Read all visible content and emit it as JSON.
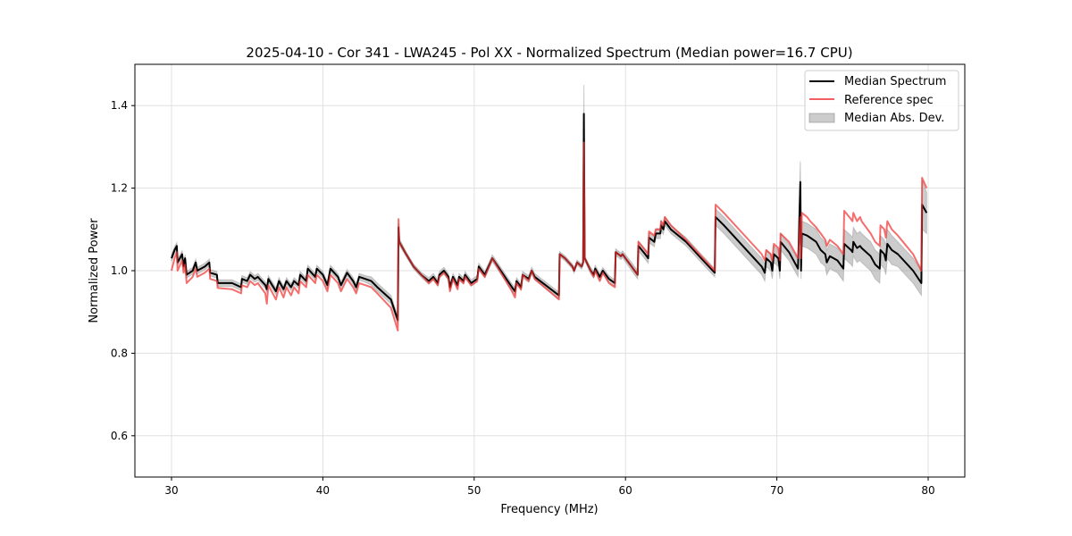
{
  "chart_data": {
    "type": "line",
    "title": "2025-04-10 - Cor 341 - LWA245 - Pol XX - Normalized Spectrum (Median power=16.7 CPU)",
    "xlabel": "Frequency (MHz)",
    "ylabel": "Normalized Power",
    "xlim": [
      27.58,
      82.42
    ],
    "ylim": [
      0.5,
      1.5
    ],
    "xticks": [
      30,
      40,
      50,
      60,
      70,
      80
    ],
    "xtick_labels": [
      "30",
      "40",
      "50",
      "60",
      "70",
      "80"
    ],
    "yticks": [
      0.6,
      0.8,
      1.0,
      1.2,
      1.4
    ],
    "ytick_labels": [
      "0.6",
      "0.8",
      "1.0",
      "1.2",
      "1.4"
    ],
    "grid": true,
    "legend_position": "top-right",
    "legend": [
      "Median Spectrum",
      "Reference spec",
      "Median Abs. Dev."
    ],
    "colors": {
      "median": "#000000",
      "reference": "#f05050",
      "mad": "#999999"
    },
    "point_columns": [
      "frequency_mhz",
      "median",
      "reference",
      "median_abs_dev"
    ],
    "points": [
      [
        30.0,
        1.03,
        1.0,
        0.008
      ],
      [
        30.2,
        1.05,
        1.03,
        0.008
      ],
      [
        30.35,
        1.06,
        1.045,
        0.008
      ],
      [
        30.4,
        1.02,
        1.0,
        0.008
      ],
      [
        30.7,
        1.04,
        1.025,
        0.008
      ],
      [
        30.8,
        1.01,
        0.995,
        0.008
      ],
      [
        30.9,
        1.03,
        1.015,
        0.008
      ],
      [
        31.0,
        0.99,
        0.97,
        0.008
      ],
      [
        31.4,
        1.0,
        0.985,
        0.008
      ],
      [
        31.6,
        1.02,
        1.005,
        0.008
      ],
      [
        31.7,
        1.0,
        0.985,
        0.008
      ],
      [
        32.2,
        1.01,
        0.995,
        0.008
      ],
      [
        32.5,
        1.02,
        1.005,
        0.008
      ],
      [
        32.55,
        0.995,
        0.98,
        0.008
      ],
      [
        33.0,
        0.99,
        0.975,
        0.008
      ],
      [
        33.05,
        0.97,
        0.958,
        0.008
      ],
      [
        34.0,
        0.97,
        0.955,
        0.008
      ],
      [
        34.6,
        0.96,
        0.945,
        0.008
      ],
      [
        34.65,
        0.98,
        0.965,
        0.008
      ],
      [
        35.0,
        0.975,
        0.96,
        0.008
      ],
      [
        35.2,
        0.99,
        0.975,
        0.008
      ],
      [
        35.5,
        0.98,
        0.965,
        0.008
      ],
      [
        35.7,
        0.985,
        0.97,
        0.008
      ],
      [
        36.2,
        0.965,
        0.945,
        0.008
      ],
      [
        36.3,
        0.955,
        0.92,
        0.008
      ],
      [
        36.4,
        0.98,
        0.965,
        0.008
      ],
      [
        36.9,
        0.95,
        0.93,
        0.008
      ],
      [
        37.1,
        0.975,
        0.96,
        0.008
      ],
      [
        37.4,
        0.955,
        0.935,
        0.008
      ],
      [
        37.6,
        0.975,
        0.96,
        0.008
      ],
      [
        37.9,
        0.96,
        0.94,
        0.008
      ],
      [
        38.1,
        0.975,
        0.96,
        0.008
      ],
      [
        38.4,
        0.965,
        0.945,
        0.008
      ],
      [
        38.5,
        0.99,
        0.975,
        0.008
      ],
      [
        38.9,
        0.975,
        0.96,
        0.008
      ],
      [
        39.0,
        1.005,
        0.99,
        0.008
      ],
      [
        39.5,
        0.985,
        0.97,
        0.008
      ],
      [
        39.6,
        1.005,
        0.99,
        0.008
      ],
      [
        40.0,
        0.99,
        0.975,
        0.008
      ],
      [
        40.3,
        0.965,
        0.95,
        0.008
      ],
      [
        40.5,
        1.005,
        0.99,
        0.008
      ],
      [
        41.0,
        0.985,
        0.97,
        0.008
      ],
      [
        41.2,
        0.965,
        0.95,
        0.008
      ],
      [
        41.6,
        0.995,
        0.98,
        0.008
      ],
      [
        42.0,
        0.975,
        0.96,
        0.008
      ],
      [
        42.2,
        0.96,
        0.945,
        0.008
      ],
      [
        42.4,
        0.985,
        0.97,
        0.008
      ],
      [
        42.8,
        0.98,
        0.965,
        0.008
      ],
      [
        43.2,
        0.975,
        0.96,
        0.01
      ],
      [
        43.6,
        0.96,
        0.945,
        0.01
      ],
      [
        44.5,
        0.93,
        0.91,
        0.01
      ],
      [
        44.95,
        0.88,
        0.855,
        0.01
      ],
      [
        45.0,
        1.105,
        1.125,
        0.01
      ],
      [
        45.05,
        1.07,
        1.07,
        0.008
      ],
      [
        45.5,
        1.04,
        1.04,
        0.006
      ],
      [
        46.0,
        1.01,
        1.01,
        0.006
      ],
      [
        46.5,
        0.99,
        0.99,
        0.006
      ],
      [
        47.0,
        0.975,
        0.97,
        0.008
      ],
      [
        47.3,
        0.985,
        0.98,
        0.008
      ],
      [
        47.6,
        0.97,
        0.965,
        0.008
      ],
      [
        47.7,
        0.99,
        0.985,
        0.008
      ],
      [
        48.0,
        1.0,
        0.995,
        0.008
      ],
      [
        48.3,
        0.985,
        0.98,
        0.008
      ],
      [
        48.4,
        0.96,
        0.95,
        0.008
      ],
      [
        48.6,
        0.985,
        0.98,
        0.008
      ],
      [
        48.9,
        0.965,
        0.955,
        0.008
      ],
      [
        49.0,
        0.985,
        0.98,
        0.008
      ],
      [
        49.3,
        0.975,
        0.97,
        0.008
      ],
      [
        49.4,
        0.99,
        0.985,
        0.008
      ],
      [
        49.8,
        0.97,
        0.965,
        0.008
      ],
      [
        50.2,
        0.98,
        0.975,
        0.008
      ],
      [
        50.3,
        1.01,
        1.005,
        0.008
      ],
      [
        50.7,
        0.99,
        0.985,
        0.008
      ],
      [
        51.2,
        1.03,
        1.03,
        0.008
      ],
      [
        52.5,
        0.96,
        0.95,
        0.008
      ],
      [
        52.7,
        0.95,
        0.935,
        0.008
      ],
      [
        52.8,
        0.975,
        0.97,
        0.008
      ],
      [
        53.1,
        0.96,
        0.955,
        0.008
      ],
      [
        53.2,
        0.99,
        0.99,
        0.008
      ],
      [
        53.6,
        0.98,
        0.975,
        0.008
      ],
      [
        53.8,
        1.0,
        1.0,
        0.008
      ],
      [
        54.0,
        0.985,
        0.98,
        0.008
      ],
      [
        55.6,
        0.94,
        0.93,
        0.008
      ],
      [
        55.65,
        1.04,
        1.04,
        0.006
      ],
      [
        56.0,
        1.03,
        1.03,
        0.006
      ],
      [
        56.5,
        1.01,
        1.01,
        0.006
      ],
      [
        56.6,
        1.0,
        1.0,
        0.006
      ],
      [
        56.8,
        1.02,
        1.02,
        0.006
      ],
      [
        57.1,
        1.01,
        1.01,
        0.006
      ],
      [
        57.2,
        1.02,
        1.02,
        0.006
      ],
      [
        57.25,
        1.38,
        1.31,
        0.07
      ],
      [
        57.3,
        1.03,
        1.03,
        0.006
      ],
      [
        57.7,
        1.0,
        1.0,
        0.008
      ],
      [
        57.9,
        0.99,
        0.985,
        0.008
      ],
      [
        58.0,
        1.005,
        1.0,
        0.008
      ],
      [
        58.3,
        0.985,
        0.975,
        0.008
      ],
      [
        58.5,
        1.0,
        0.995,
        0.008
      ],
      [
        58.9,
        0.98,
        0.97,
        0.008
      ],
      [
        59.3,
        0.97,
        0.96,
        0.008
      ],
      [
        59.35,
        1.045,
        1.045,
        0.008
      ],
      [
        59.7,
        1.035,
        1.035,
        0.008
      ],
      [
        59.8,
        1.04,
        1.04,
        0.008
      ],
      [
        60.4,
        1.01,
        1.01,
        0.01
      ],
      [
        60.8,
        0.99,
        0.99,
        0.01
      ],
      [
        60.85,
        1.06,
        1.07,
        0.012
      ],
      [
        61.3,
        1.04,
        1.05,
        0.012
      ],
      [
        61.5,
        1.03,
        1.04,
        0.012
      ],
      [
        61.55,
        1.08,
        1.095,
        0.012
      ],
      [
        61.9,
        1.07,
        1.085,
        0.012
      ],
      [
        62.0,
        1.09,
        1.1,
        0.012
      ],
      [
        62.3,
        1.09,
        1.1,
        0.012
      ],
      [
        62.35,
        1.11,
        1.12,
        0.012
      ],
      [
        62.5,
        1.1,
        1.11,
        0.012
      ],
      [
        62.6,
        1.12,
        1.13,
        0.01
      ],
      [
        63.0,
        1.1,
        1.11,
        0.01
      ],
      [
        64.0,
        1.07,
        1.075,
        0.01
      ],
      [
        65.0,
        1.03,
        1.035,
        0.01
      ],
      [
        65.9,
        0.995,
        1.0,
        0.01
      ],
      [
        65.95,
        1.13,
        1.16,
        0.02
      ],
      [
        66.5,
        1.11,
        1.14,
        0.02
      ],
      [
        67.0,
        1.09,
        1.12,
        0.02
      ],
      [
        68.0,
        1.05,
        1.08,
        0.02
      ],
      [
        69.0,
        1.01,
        1.04,
        0.02
      ],
      [
        69.2,
        0.995,
        1.025,
        0.02
      ],
      [
        69.3,
        1.03,
        1.05,
        0.02
      ],
      [
        69.6,
        1.02,
        1.04,
        0.02
      ],
      [
        69.7,
        1.0,
        1.025,
        0.02
      ],
      [
        69.8,
        1.04,
        1.065,
        0.02
      ],
      [
        70.1,
        1.03,
        1.055,
        0.02
      ],
      [
        70.2,
        1.0,
        1.025,
        0.02
      ],
      [
        70.25,
        1.07,
        1.09,
        0.02
      ],
      [
        70.8,
        1.045,
        1.07,
        0.02
      ],
      [
        71.4,
        1.005,
        1.03,
        0.02
      ],
      [
        71.55,
        1.215,
        1.13,
        0.05
      ],
      [
        71.6,
        1.0,
        1.03,
        0.02
      ],
      [
        71.65,
        1.09,
        1.14,
        0.03
      ],
      [
        72.0,
        1.085,
        1.13,
        0.03
      ],
      [
        72.2,
        1.08,
        1.12,
        0.03
      ],
      [
        72.6,
        1.07,
        1.105,
        0.03
      ],
      [
        72.9,
        1.05,
        1.09,
        0.03
      ],
      [
        73.2,
        1.04,
        1.075,
        0.03
      ],
      [
        73.3,
        1.02,
        1.06,
        0.03
      ],
      [
        73.5,
        1.035,
        1.075,
        0.03
      ],
      [
        74.0,
        1.025,
        1.06,
        0.03
      ],
      [
        74.4,
        1.005,
        1.04,
        0.03
      ],
      [
        74.45,
        1.065,
        1.145,
        0.035
      ],
      [
        74.9,
        1.05,
        1.125,
        0.035
      ],
      [
        75.0,
        1.045,
        1.12,
        0.035
      ],
      [
        75.05,
        1.07,
        1.14,
        0.035
      ],
      [
        75.3,
        1.055,
        1.12,
        0.035
      ],
      [
        75.5,
        1.06,
        1.13,
        0.035
      ],
      [
        75.6,
        1.055,
        1.12,
        0.035
      ],
      [
        76.2,
        1.035,
        1.09,
        0.035
      ],
      [
        76.5,
        1.015,
        1.07,
        0.035
      ],
      [
        76.8,
        1.005,
        1.06,
        0.035
      ],
      [
        76.85,
        1.05,
        1.11,
        0.035
      ],
      [
        77.1,
        1.04,
        1.1,
        0.035
      ],
      [
        77.2,
        1.025,
        1.08,
        0.035
      ],
      [
        77.3,
        1.065,
        1.12,
        0.035
      ],
      [
        77.6,
        1.05,
        1.1,
        0.035
      ],
      [
        78.0,
        1.04,
        1.085,
        0.03
      ],
      [
        79.0,
        1.0,
        1.04,
        0.03
      ],
      [
        79.55,
        0.97,
        1.0,
        0.03
      ],
      [
        79.6,
        1.16,
        1.225,
        0.06
      ],
      [
        79.9,
        1.14,
        1.2,
        0.05
      ]
    ]
  }
}
